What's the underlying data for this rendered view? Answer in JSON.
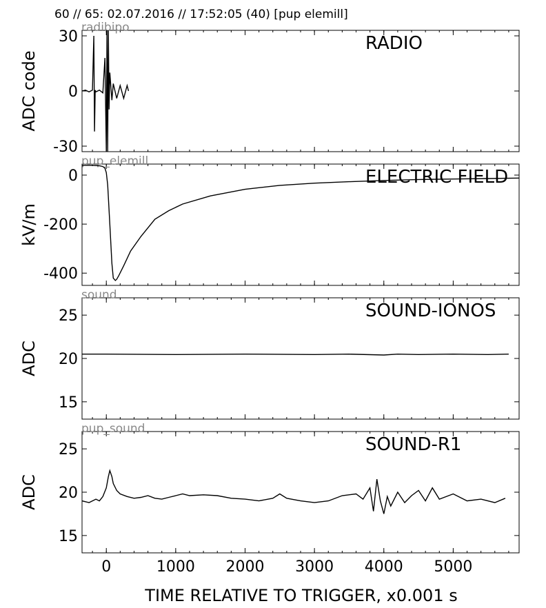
{
  "header": {
    "title": "60 // 65:   02.07.2016 // 17:52:05 (40)  [pup elemill]"
  },
  "xaxis": {
    "label": "TIME RELATIVE TO TRIGGER,   x0.001 s",
    "ticks": [
      "0",
      "1000",
      "2000",
      "3000",
      "4000",
      "5000"
    ],
    "xlim": [
      -350,
      5950
    ]
  },
  "chart_data": [
    {
      "type": "line",
      "panel_title": "RADIO",
      "channel": "radibipo",
      "ylabel": "ADC code",
      "ylim": [
        -33,
        33
      ],
      "yticks": [
        "30",
        "0",
        "-30"
      ],
      "grid": false,
      "series": [
        {
          "x": [
            -350,
            -300,
            -250,
            -200,
            -180,
            -170,
            -160,
            -150,
            -100,
            -50,
            -20,
            0,
            10,
            20,
            30,
            40,
            50,
            60,
            80,
            100,
            150,
            200,
            250,
            300,
            320
          ],
          "y": [
            0,
            0.5,
            -0.5,
            0.5,
            30,
            -22,
            0.5,
            -0.5,
            0.5,
            -1,
            18,
            -33,
            33,
            -33,
            33,
            -10,
            10,
            5,
            -5,
            4,
            -4,
            3,
            -4,
            3,
            0
          ]
        }
      ]
    },
    {
      "type": "line",
      "panel_title": "ELECTRIC FIELD",
      "channel": "pup_elemill",
      "ylabel": "kV/m",
      "ylim": [
        -450,
        45
      ],
      "yticks": [
        "0",
        "-200",
        "-400"
      ],
      "grid": false,
      "series": [
        {
          "x": [
            -350,
            -200,
            -100,
            -50,
            -20,
            0,
            20,
            50,
            80,
            100,
            130,
            150,
            180,
            250,
            350,
            500,
            700,
            900,
            1100,
            1500,
            2000,
            2500,
            3000,
            3500,
            4000,
            4500,
            5000,
            5500,
            5950
          ],
          "y": [
            40,
            40,
            38,
            35,
            28,
            10,
            -40,
            -200,
            -360,
            -420,
            -430,
            -425,
            -410,
            -370,
            -310,
            -250,
            -180,
            -145,
            -118,
            -85,
            -58,
            -42,
            -33,
            -27,
            -22,
            -18,
            -16,
            -14,
            -12
          ]
        }
      ]
    },
    {
      "type": "line",
      "panel_title": "SOUND-IONOS",
      "channel": "sound",
      "ylabel": "ADC",
      "ylim": [
        13,
        27
      ],
      "yticks": [
        "25",
        "20",
        "15"
      ],
      "grid": false,
      "series": [
        {
          "x": [
            -350,
            0,
            1000,
            2000,
            3000,
            3500,
            4000,
            4200,
            4500,
            5000,
            5500,
            5800
          ],
          "y": [
            20.5,
            20.5,
            20.45,
            20.5,
            20.45,
            20.5,
            20.4,
            20.5,
            20.45,
            20.5,
            20.45,
            20.5
          ]
        }
      ]
    },
    {
      "type": "line",
      "panel_title": "SOUND-R1",
      "channel": "pup_sound",
      "ylabel": "ADC",
      "ylim": [
        13,
        27
      ],
      "yticks": [
        "25",
        "20",
        "15"
      ],
      "grid": false,
      "series": [
        {
          "x": [
            -350,
            -250,
            -150,
            -100,
            -50,
            0,
            30,
            50,
            80,
            100,
            150,
            200,
            300,
            400,
            500,
            600,
            700,
            800,
            900,
            1000,
            1100,
            1200,
            1400,
            1600,
            1800,
            2000,
            2200,
            2400,
            2500,
            2600,
            2800,
            3000,
            3200,
            3400,
            3600,
            3700,
            3800,
            3850,
            3900,
            3950,
            4000,
            4050,
            4100,
            4200,
            4300,
            4400,
            4500,
            4600,
            4700,
            4800,
            5000,
            5200,
            5400,
            5600,
            5750
          ],
          "y": [
            19,
            18.8,
            19.2,
            19.0,
            19.5,
            20.5,
            21.8,
            22.5,
            21.8,
            21,
            20.2,
            19.8,
            19.5,
            19.3,
            19.4,
            19.6,
            19.3,
            19.2,
            19.4,
            19.6,
            19.8,
            19.6,
            19.7,
            19.6,
            19.3,
            19.2,
            19.0,
            19.3,
            19.8,
            19.3,
            19.0,
            18.8,
            19.0,
            19.6,
            19.8,
            19.2,
            20.5,
            17.8,
            21.5,
            19.0,
            17.5,
            19.5,
            18.4,
            20.0,
            18.8,
            19.6,
            20.2,
            19.0,
            20.5,
            19.2,
            19.8,
            19.0,
            19.2,
            18.8,
            19.3
          ]
        }
      ]
    }
  ]
}
